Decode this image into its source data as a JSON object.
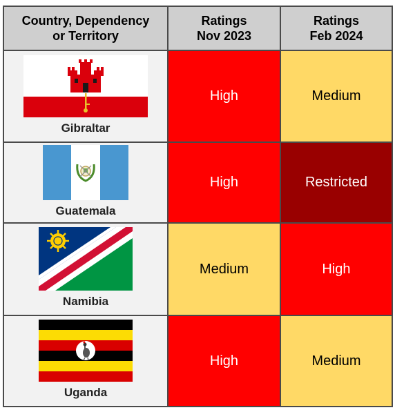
{
  "headers": {
    "country": [
      "Country, Dependency",
      "or Territory"
    ],
    "nov": [
      "Ratings",
      "Nov 2023"
    ],
    "feb": [
      "Ratings",
      "Feb 2024"
    ]
  },
  "colors": {
    "High": "#ff0000",
    "Medium": "#ffd966",
    "Restricted": "#990000"
  },
  "rows": [
    {
      "country": "Gibraltar",
      "flag_icon": "gibraltar-flag-icon",
      "nov": "High",
      "feb": "Medium"
    },
    {
      "country": "Guatemala",
      "flag_icon": "guatemala-flag-icon",
      "nov": "High",
      "feb": "Restricted"
    },
    {
      "country": "Namibia",
      "flag_icon": "namibia-flag-icon",
      "nov": "Medium",
      "feb": "High"
    },
    {
      "country": "Uganda",
      "flag_icon": "uganda-flag-icon",
      "nov": "High",
      "feb": "Medium"
    }
  ]
}
